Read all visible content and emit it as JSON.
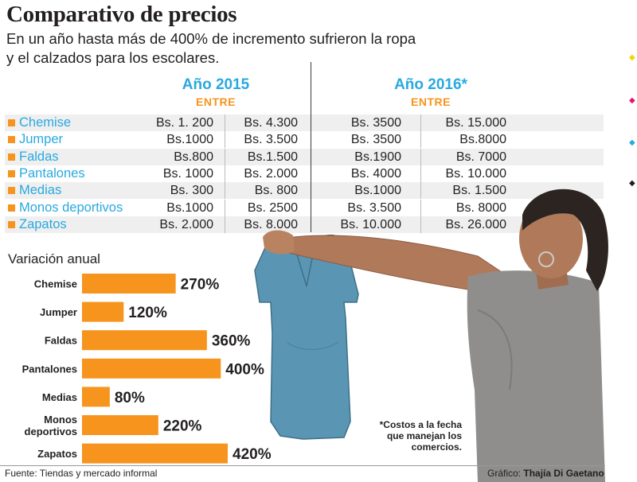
{
  "header": {
    "title": "Comparativo de precios",
    "subtitle_line1": "En un año hasta más de 400% de incremento sufrieron la ropa",
    "subtitle_line2": "y el calzados para los escolares."
  },
  "table": {
    "year1": "Año 2015",
    "year2": "Año 2016*",
    "entre": "ENTRE",
    "rows": [
      {
        "item": "Chemise",
        "p2015_min": "Bs. 1. 200",
        "p2015_max": "Bs. 4.300",
        "p2016_min": "Bs. 3500",
        "p2016_max": "Bs. 15.000"
      },
      {
        "item": "Jumper",
        "p2015_min": "Bs.1000",
        "p2015_max": "Bs. 3.500",
        "p2016_min": "Bs. 3500",
        "p2016_max": "Bs.8000"
      },
      {
        "item": "Faldas",
        "p2015_min": "Bs.800",
        "p2015_max": "Bs.1.500",
        "p2016_min": "Bs.1900",
        "p2016_max": "Bs. 7000"
      },
      {
        "item": "Pantalones",
        "p2015_min": "Bs. 1000",
        "p2015_max": "Bs. 2.000",
        "p2016_min": "Bs. 4000",
        "p2016_max": "Bs. 10.000"
      },
      {
        "item": "Medias",
        "p2015_min": "Bs. 300",
        "p2015_max": "Bs. 800",
        "p2016_min": "Bs.1000",
        "p2016_max": "Bs. 1.500"
      },
      {
        "item": "Monos deportivos",
        "p2015_min": "Bs.1000",
        "p2015_max": "Bs. 2500",
        "p2016_min": "Bs. 3.500",
        "p2016_max": "Bs. 8000"
      },
      {
        "item": "Zapatos",
        "p2015_min": "Bs. 2.000",
        "p2015_max": "Bs. 8.000",
        "p2016_min": "Bs. 10.000",
        "p2016_max": "Bs. 26.000"
      }
    ]
  },
  "chart_data": {
    "type": "bar",
    "orientation": "horizontal",
    "title": "Variación anual",
    "categories": [
      "Chemise",
      "Jumper",
      "Faldas",
      "Pantalones",
      "Medias",
      "Monos\ndeportivos",
      "Zapatos"
    ],
    "values": [
      270,
      120,
      360,
      400,
      80,
      220,
      420
    ],
    "labels": [
      "270%",
      "120%",
      "360%",
      "400%",
      "80%",
      "220%",
      "420%"
    ],
    "xlim": [
      0,
      420
    ],
    "grid": false,
    "bar_color": "#f7941d"
  },
  "footnote": "*Costos a la fecha que manejan los comercios.",
  "source": "Fuente: Tiendas y mercado informal",
  "credit_prefix": "Gráfico: ",
  "credit_name": "Thajía Di Gaetano",
  "colors": {
    "accent_blue": "#29a9e0",
    "accent_orange": "#f7941d",
    "text": "#231f20"
  }
}
